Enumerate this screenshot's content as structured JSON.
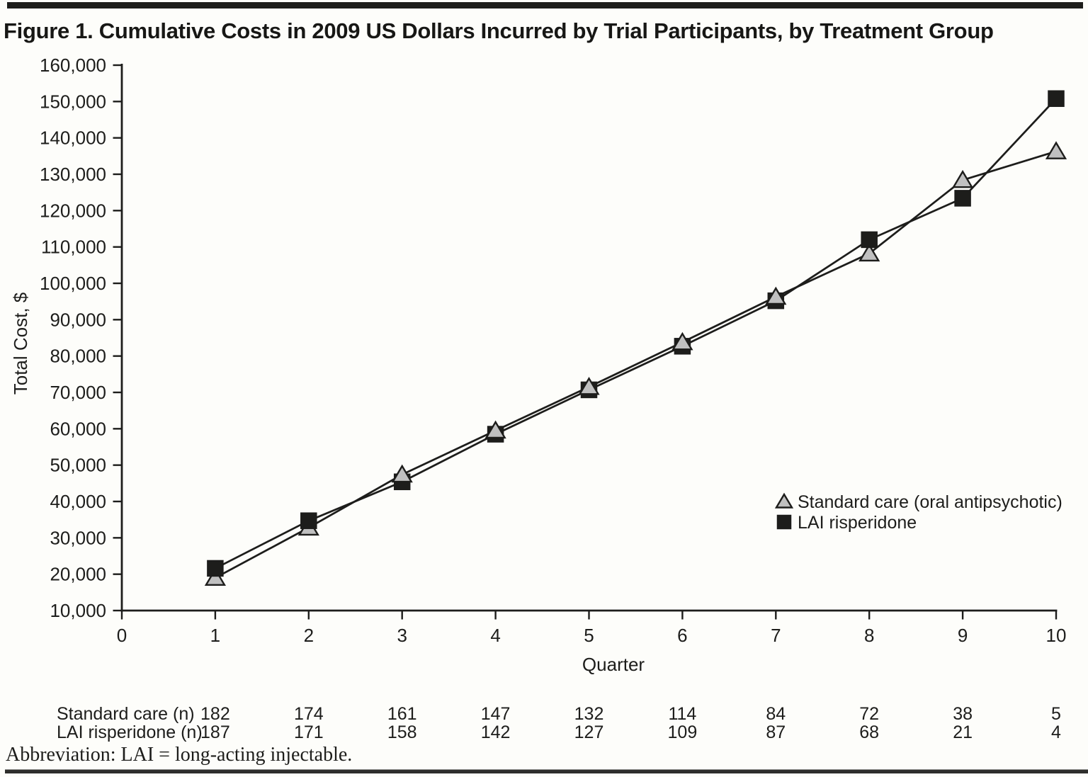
{
  "figure": {
    "title": "Figure 1. Cumulative Costs in 2009 US Dollars Incurred by Trial Participants, by Treatment Group",
    "abbreviation_note": "Abbreviation: LAI = long-acting injectable."
  },
  "chart_data": {
    "type": "line",
    "title": "Figure 1. Cumulative Costs in 2009 US Dollars Incurred by Trial Participants, by Treatment Group",
    "xlabel": "Quarter",
    "ylabel": "Total Cost, $",
    "x_ticks": [
      0,
      1,
      2,
      3,
      4,
      5,
      6,
      7,
      8,
      9,
      10
    ],
    "categories": [
      1,
      2,
      3,
      4,
      5,
      6,
      7,
      8,
      9,
      10
    ],
    "ylim": [
      10000,
      160000
    ],
    "ytick_step": 10000,
    "grid": false,
    "legend_position": "inside-right-lower",
    "series": [
      {
        "name": "Standard care (oral antipsychotic)",
        "marker": "triangle",
        "marker_fill": "#c0c0c0",
        "values": [
          19000,
          32800,
          47400,
          59500,
          71500,
          83800,
          96300,
          108200,
          128400,
          136300
        ]
      },
      {
        "name": "LAI risperidone",
        "marker": "square",
        "marker_fill": "#1d1d1b",
        "values": [
          21600,
          34700,
          45400,
          58500,
          70700,
          82700,
          95200,
          112000,
          123400,
          150800
        ]
      }
    ]
  },
  "counts_table": {
    "rows": [
      {
        "label": "Standard care (n)",
        "values": [
          182,
          174,
          161,
          147,
          132,
          114,
          84,
          72,
          38,
          5
        ]
      },
      {
        "label": "LAI risperidone (n)",
        "values": [
          187,
          171,
          158,
          142,
          127,
          109,
          87,
          68,
          21,
          4
        ]
      }
    ]
  },
  "colors": {
    "ink": "#1d1d1b",
    "triangle_fill": "#c0c0c0",
    "background": "#fdfdfa"
  }
}
